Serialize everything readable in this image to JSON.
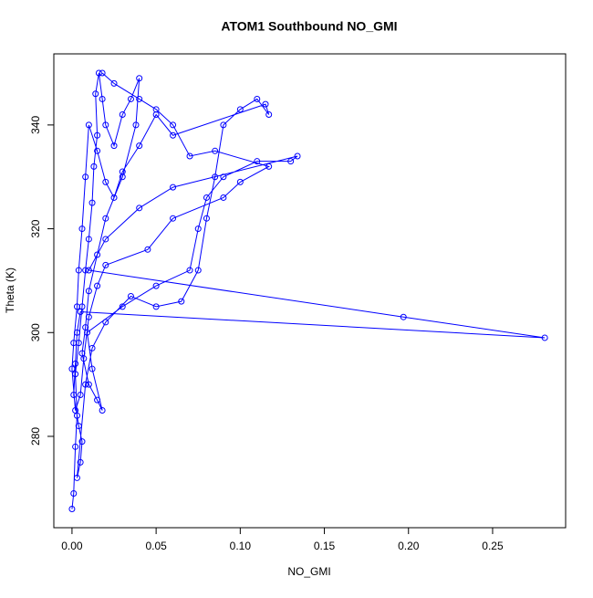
{
  "chart_data": {
    "type": "line",
    "title": "ATOM1 Southbound NO_GMI",
    "x_label": "NO_GMI",
    "y_label": "Theta (K)",
    "color": "#0000ff",
    "marker": "open-circle",
    "x": [
      0.0,
      0.001,
      0.002,
      0.003,
      0.002,
      0.004,
      0.006,
      0.008,
      0.01,
      0.012,
      0.013,
      0.015,
      0.014,
      0.016,
      0.018,
      0.02,
      0.025,
      0.03,
      0.035,
      0.04,
      0.038,
      0.03,
      0.02,
      0.015,
      0.01,
      0.008,
      0.006,
      0.01,
      0.015,
      0.018,
      0.012,
      0.009,
      0.03,
      0.05,
      0.07,
      0.075,
      0.08,
      0.09,
      0.11,
      0.13,
      0.134,
      0.06,
      0.04,
      0.02,
      0.01,
      0.197,
      0.281,
      0.005,
      0.003,
      0.002,
      0.001,
      0.004,
      0.006,
      0.005,
      0.003,
      0.008,
      0.012,
      0.02,
      0.035,
      0.05,
      0.065,
      0.075,
      0.08,
      0.085,
      0.09,
      0.1,
      0.11,
      0.117,
      0.115,
      0.06,
      0.05,
      0.04,
      0.03,
      0.025,
      0.02,
      0.015,
      0.01,
      0.008,
      0.006,
      0.004,
      0.003,
      0.001,
      0.0,
      0.002,
      0.005,
      0.007,
      0.01,
      0.015,
      0.02,
      0.045,
      0.06,
      0.09,
      0.1,
      0.117,
      0.085,
      0.07,
      0.06,
      0.05,
      0.04,
      0.025,
      0.018
    ],
    "values": [
      266,
      269,
      278,
      284,
      292,
      298,
      305,
      312,
      318,
      325,
      332,
      338,
      346,
      350,
      345,
      340,
      336,
      342,
      345,
      349,
      340,
      330,
      322,
      315,
      308,
      301,
      296,
      290,
      287,
      285,
      293,
      300,
      305,
      309,
      312,
      320,
      326,
      330,
      333,
      333,
      334,
      328,
      324,
      318,
      312,
      303,
      299,
      304,
      300,
      294,
      288,
      282,
      279,
      275,
      272,
      290,
      297,
      302,
      307,
      305,
      306,
      312,
      322,
      330,
      340,
      343,
      345,
      342,
      344,
      338,
      342,
      336,
      331,
      326,
      329,
      335,
      340,
      330,
      320,
      312,
      305,
      298,
      293,
      285,
      288,
      295,
      303,
      309,
      313,
      316,
      322,
      326,
      329,
      332,
      335,
      334,
      340,
      343,
      345,
      348,
      350
    ],
    "xlim": [
      -0.0108,
      0.2934
    ],
    "ylim": [
      262.4,
      353.7
    ],
    "xticks": [
      {
        "value": 0,
        "label": "0.00"
      },
      0.05,
      {
        "value": 0.1,
        "label": "0.10"
      },
      0.15,
      {
        "value": 0.2,
        "label": "0.20"
      },
      0.25
    ],
    "yticks": [
      280,
      300,
      320,
      340
    ]
  }
}
